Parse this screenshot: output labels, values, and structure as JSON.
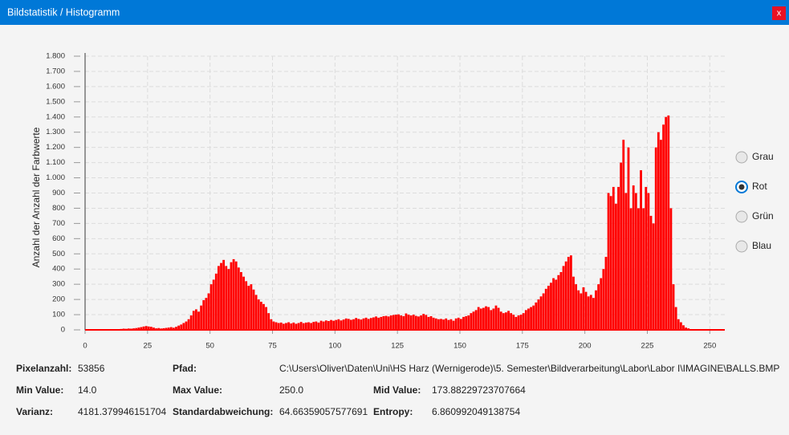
{
  "window": {
    "title": "Bildstatistik / Histogramm",
    "close": "x"
  },
  "chart_data": {
    "type": "histogram",
    "y_label": "Anzahl der Anzahl der Farbwerte",
    "color": "#ff0000",
    "grid": true,
    "bins": [
      0,
      1,
      2,
      3,
      4,
      5,
      6,
      7,
      8,
      9,
      10,
      11,
      12,
      13,
      14,
      15,
      16,
      17,
      18,
      19,
      20,
      21,
      22,
      23,
      24,
      25,
      26,
      27,
      28,
      29,
      30,
      31,
      32,
      33,
      34,
      35,
      36,
      37,
      38,
      39,
      40,
      41,
      42,
      43,
      44,
      45,
      46,
      47,
      48,
      49,
      50,
      51,
      52,
      53,
      54,
      55,
      56,
      57,
      58,
      59,
      60,
      61,
      62,
      63,
      64,
      65,
      66,
      67,
      68,
      69,
      70,
      71,
      72,
      73,
      74,
      75,
      76,
      77,
      78,
      79,
      80,
      81,
      82,
      83,
      84,
      85,
      86,
      87,
      88,
      89,
      90,
      91,
      92,
      93,
      94,
      95,
      96,
      97,
      98,
      99,
      100,
      101,
      102,
      103,
      104,
      105,
      106,
      107,
      108,
      109,
      110,
      111,
      112,
      113,
      114,
      115,
      116,
      117,
      118,
      119,
      120,
      121,
      122,
      123,
      124,
      125,
      126,
      127,
      128,
      129,
      130,
      131,
      132,
      133,
      134,
      135,
      136,
      137,
      138,
      139,
      140,
      141,
      142,
      143,
      144,
      145,
      146,
      147,
      148,
      149,
      150,
      151,
      152,
      153,
      154,
      155,
      156,
      157,
      158,
      159,
      160,
      161,
      162,
      163,
      164,
      165,
      166,
      167,
      168,
      169,
      170,
      171,
      172,
      173,
      174,
      175,
      176,
      177,
      178,
      179,
      180,
      181,
      182,
      183,
      184,
      185,
      186,
      187,
      188,
      189,
      190,
      191,
      192,
      193,
      194,
      195,
      196,
      197,
      198,
      199,
      200,
      201,
      202,
      203,
      204,
      205,
      206,
      207,
      208,
      209,
      210,
      211,
      212,
      213,
      214,
      215,
      216,
      217,
      218,
      219,
      220,
      221,
      222,
      223,
      224,
      225,
      226,
      227,
      228,
      229,
      230,
      231,
      232,
      233,
      234,
      235,
      236,
      237,
      238,
      239,
      240,
      241,
      242,
      243,
      244,
      245,
      246,
      247,
      248,
      249,
      250,
      251,
      252,
      253,
      254,
      255,
      256
    ],
    "values": [
      0,
      0,
      0,
      0,
      0,
      0,
      0,
      0,
      0,
      0,
      0,
      0,
      0,
      0,
      6,
      8,
      7,
      9,
      8,
      10,
      12,
      15,
      18,
      22,
      25,
      22,
      20,
      15,
      10,
      12,
      9,
      11,
      13,
      15,
      18,
      14,
      20,
      28,
      35,
      45,
      55,
      70,
      95,
      125,
      135,
      120,
      160,
      195,
      210,
      240,
      300,
      330,
      370,
      420,
      440,
      460,
      420,
      400,
      445,
      465,
      450,
      410,
      380,
      350,
      320,
      290,
      300,
      265,
      230,
      200,
      185,
      170,
      150,
      110,
      70,
      55,
      50,
      45,
      48,
      40,
      45,
      50,
      42,
      48,
      40,
      45,
      52,
      44,
      48,
      50,
      45,
      52,
      55,
      48,
      60,
      55,
      62,
      58,
      65,
      60,
      65,
      70,
      62,
      68,
      75,
      72,
      66,
      70,
      78,
      72,
      68,
      75,
      80,
      72,
      78,
      82,
      88,
      80,
      85,
      90,
      92,
      88,
      95,
      98,
      100,
      102,
      95,
      90,
      108,
      100,
      95,
      100,
      92,
      88,
      95,
      105,
      98,
      85,
      90,
      80,
      75,
      70,
      72,
      68,
      75,
      65,
      70,
      60,
      75,
      80,
      72,
      85,
      90,
      95,
      110,
      120,
      130,
      150,
      140,
      145,
      155,
      150,
      130,
      140,
      160,
      145,
      120,
      110,
      115,
      125,
      110,
      100,
      85,
      95,
      100,
      110,
      130,
      140,
      150,
      160,
      180,
      200,
      220,
      240,
      270,
      290,
      310,
      340,
      330,
      360,
      380,
      420,
      450,
      480,
      490,
      350,
      300,
      260,
      240,
      280,
      250,
      220,
      230,
      210,
      260,
      300,
      340,
      400,
      480,
      900,
      880,
      940,
      830,
      940,
      1100,
      1250,
      900,
      1200,
      800,
      950,
      900,
      800,
      1050,
      800,
      940,
      900,
      750,
      700,
      1200,
      1300,
      1250,
      1350,
      1400,
      1410,
      800,
      300,
      150,
      70,
      50,
      30,
      15,
      10,
      5,
      4,
      3,
      3,
      2,
      2,
      2,
      2,
      1,
      0,
      0,
      0,
      0,
      0
    ],
    "xlim": [
      0,
      256
    ],
    "xticks": [
      0,
      25,
      50,
      75,
      100,
      125,
      150,
      175,
      200,
      225,
      250
    ],
    "ylim": [
      0,
      1800
    ],
    "yticks": [
      0,
      100,
      200,
      300,
      400,
      500,
      600,
      700,
      800,
      900,
      {
        "value": 1000,
        "label": "1.000"
      },
      {
        "value": 1100,
        "label": "1.100"
      },
      {
        "value": 1200,
        "label": "1.200"
      },
      {
        "value": 1300,
        "label": "1.300"
      },
      {
        "value": 1400,
        "label": "1.400"
      },
      {
        "value": 1500,
        "label": "1.500"
      },
      {
        "value": 1600,
        "label": "1.600"
      },
      {
        "value": 1700,
        "label": "1.700"
      },
      {
        "value": 1800,
        "label": "1.800"
      }
    ]
  },
  "channels": {
    "options": [
      "Grau",
      "Rot",
      "Grün",
      "Blau"
    ],
    "selected": 1
  },
  "stats": [
    [
      {
        "label": "Pixelanzahl:",
        "value": "53856"
      },
      {
        "label": "Pfad:",
        "value": "C:\\Users\\Oliver\\Daten\\Uni\\HS Harz (Wernigerode)\\5. Semester\\Bildverarbeitung\\Labor\\Labor I\\IMAGINE\\BALLS.BMP"
      }
    ],
    [
      {
        "label": "Min Value:",
        "value": "14.0"
      },
      {
        "label": "Max Value:",
        "value": "250.0"
      },
      {
        "label": "Mid Value:",
        "value": "173.88229723707664"
      }
    ],
    [
      {
        "label": "Varianz:",
        "value": "4181.379946151704"
      },
      {
        "label": "Standardabweichung:",
        "value": "64.66359057577691"
      },
      {
        "label": "Entropy:",
        "value": "6.860992049138754"
      }
    ]
  ]
}
